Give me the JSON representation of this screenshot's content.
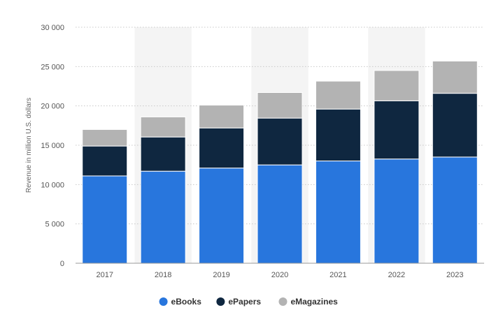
{
  "chart_data": {
    "type": "bar",
    "stacked": true,
    "categories": [
      "2017",
      "2018",
      "2019",
      "2020",
      "2021",
      "2022",
      "2023"
    ],
    "series": [
      {
        "name": "eBooks",
        "color": "#2876dd",
        "values": [
          11100,
          11700,
          12100,
          12500,
          13000,
          13250,
          13500
        ]
      },
      {
        "name": "ePapers",
        "color": "#0f2740",
        "values": [
          3800,
          4350,
          5100,
          5950,
          6600,
          7400,
          8100
        ]
      },
      {
        "name": "eMagazines",
        "color": "#b3b3b3",
        "values": [
          2100,
          2550,
          2900,
          3250,
          3550,
          3850,
          4100
        ]
      }
    ],
    "ylabel": "Revenue in million U.S. dollars",
    "ylim": [
      0,
      30000
    ],
    "yticks": [
      0,
      5000,
      10000,
      15000,
      20000,
      25000,
      30000
    ],
    "ytick_labels": [
      "0",
      "5 000",
      "10 000",
      "15 000",
      "20 000",
      "25 000",
      "30 000"
    ],
    "forecast_categories": [
      "2018",
      "2020",
      "2022"
    ],
    "grid": true,
    "legend_position": "bottom-center"
  }
}
